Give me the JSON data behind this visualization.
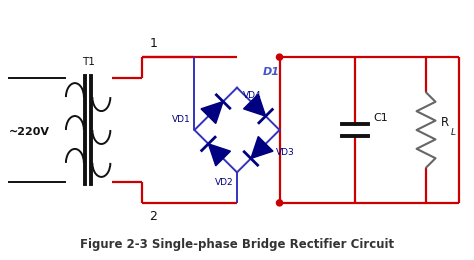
{
  "title": "Figure 2-3 Single-phase Bridge Rectifier Circuit",
  "title_fontsize": 8.5,
  "title_color": "#333333",
  "bg_color": "#ffffff",
  "red": "#cc0000",
  "blue": "#3333bb",
  "dark_blue": "#000080",
  "gray": "#666666",
  "black": "#111111",
  "fig_width": 4.74,
  "fig_height": 2.6,
  "xlim": [
    0,
    10
  ],
  "ylim": [
    0,
    5.5
  ]
}
